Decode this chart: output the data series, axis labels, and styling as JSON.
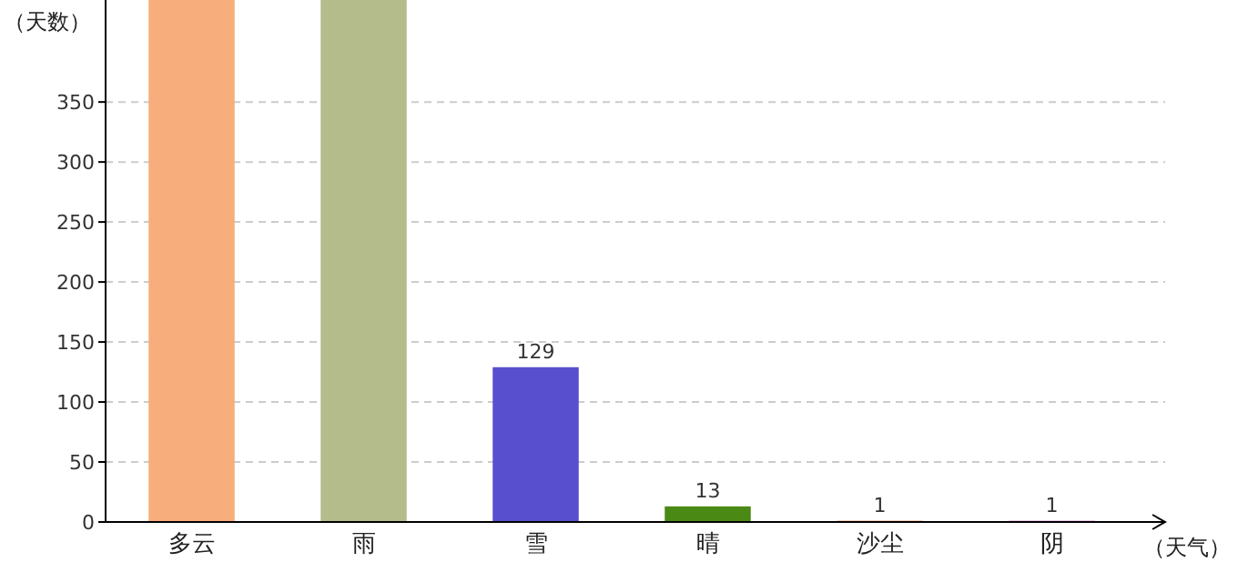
{
  "chart_data": {
    "type": "bar",
    "xlabel": "（天气）",
    "ylabel": "（天数）",
    "categories": [
      "多云",
      "雨",
      "雪",
      "晴",
      "沙尘",
      "阴"
    ],
    "values": [
      435,
      435,
      129,
      13,
      1,
      1
    ],
    "colors": [
      "#f8ae7c",
      "#b4bc8c",
      "#584fcf",
      "#4a8a14",
      "#e07030",
      "#c060c0"
    ],
    "value_labels": [
      null,
      null,
      "129",
      "13",
      "1",
      "1"
    ],
    "ylim": [
      0,
      435
    ],
    "yticks": [
      0,
      50,
      100,
      150,
      200,
      250,
      300,
      350
    ],
    "grid": "y"
  }
}
